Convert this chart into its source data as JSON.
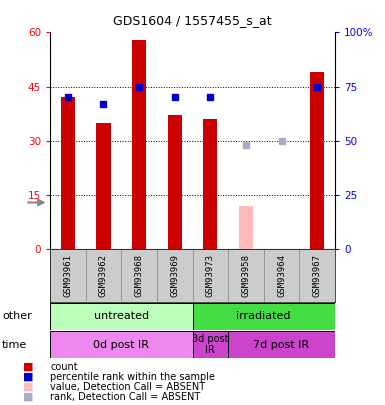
{
  "title": "GDS1604 / 1557455_s_at",
  "samples": [
    "GSM93961",
    "GSM93962",
    "GSM93968",
    "GSM93969",
    "GSM93973",
    "GSM93958",
    "GSM93964",
    "GSM93967"
  ],
  "bar_values": [
    42,
    35,
    58,
    37,
    36,
    12,
    0,
    49
  ],
  "bar_colors": [
    "#cc0000",
    "#cc0000",
    "#cc0000",
    "#cc0000",
    "#cc0000",
    "#ffbbbb",
    "#ffbbbb",
    "#cc0000"
  ],
  "rank_values": [
    70,
    67,
    75,
    70,
    70,
    48,
    50,
    75
  ],
  "rank_colors": [
    "#0000cc",
    "#0000cc",
    "#0000cc",
    "#0000cc",
    "#0000cc",
    "#aaaacc",
    "#aaaacc",
    "#0000cc"
  ],
  "absent": [
    false,
    false,
    false,
    false,
    false,
    true,
    true,
    false
  ],
  "ylim_left": [
    0,
    60
  ],
  "ylim_right": [
    0,
    100
  ],
  "yticks_left": [
    0,
    15,
    30,
    45,
    60
  ],
  "ytick_labels_left": [
    "0",
    "15",
    "30",
    "45",
    "60"
  ],
  "yticks_right": [
    0,
    25,
    50,
    75,
    100
  ],
  "ytick_labels_right": [
    "0",
    "25",
    "50",
    "75",
    "100%"
  ],
  "group_other": [
    {
      "label": "untreated",
      "start": 0,
      "end": 4,
      "color": "#bbffbb"
    },
    {
      "label": "irradiated",
      "start": 4,
      "end": 8,
      "color": "#44dd44"
    }
  ],
  "group_time": [
    {
      "label": "0d post IR",
      "start": 0,
      "end": 4,
      "color": "#ee88ee"
    },
    {
      "label": "3d post\nIR",
      "start": 4,
      "end": 5,
      "color": "#cc44cc"
    },
    {
      "label": "7d post IR",
      "start": 5,
      "end": 8,
      "color": "#cc44cc"
    }
  ],
  "legend_items": [
    {
      "label": "count",
      "color": "#cc0000",
      "marker": "s"
    },
    {
      "label": "percentile rank within the sample",
      "color": "#0000cc",
      "marker": "s"
    },
    {
      "label": "value, Detection Call = ABSENT",
      "color": "#ffbbbb",
      "marker": "s"
    },
    {
      "label": "rank, Detection Call = ABSENT",
      "color": "#aaaacc",
      "marker": "s"
    }
  ],
  "bar_width": 0.4,
  "label_fontsize": 8,
  "tick_fontsize": 7.5,
  "sample_fontsize": 6.5
}
